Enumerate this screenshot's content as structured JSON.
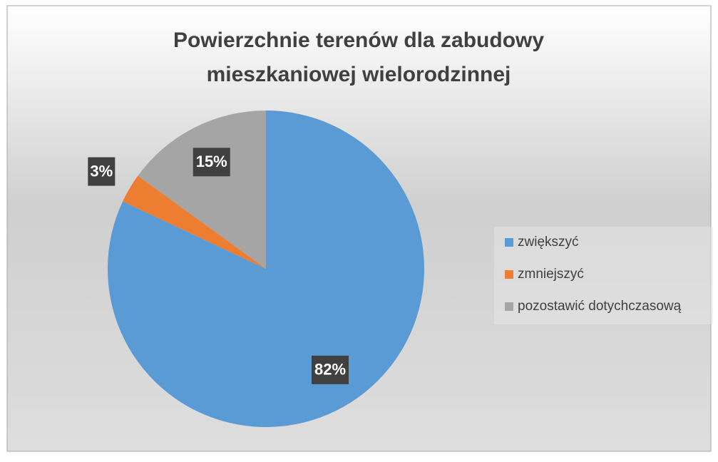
{
  "chart_data": {
    "type": "pie",
    "title": [
      "Powierzchnie terenów dla zabudowy",
      "mieszkaniowej wielorodzinnej"
    ],
    "categories": [
      "zwiększyć",
      "zmniejszyć",
      "pozostawić dotychczasową"
    ],
    "values": [
      82,
      3,
      15
    ],
    "value_labels": [
      "82%",
      "3%",
      "15%"
    ],
    "colors": [
      "#5b9bd5",
      "#ed7d31",
      "#a5a5a5"
    ],
    "legend": "right"
  }
}
